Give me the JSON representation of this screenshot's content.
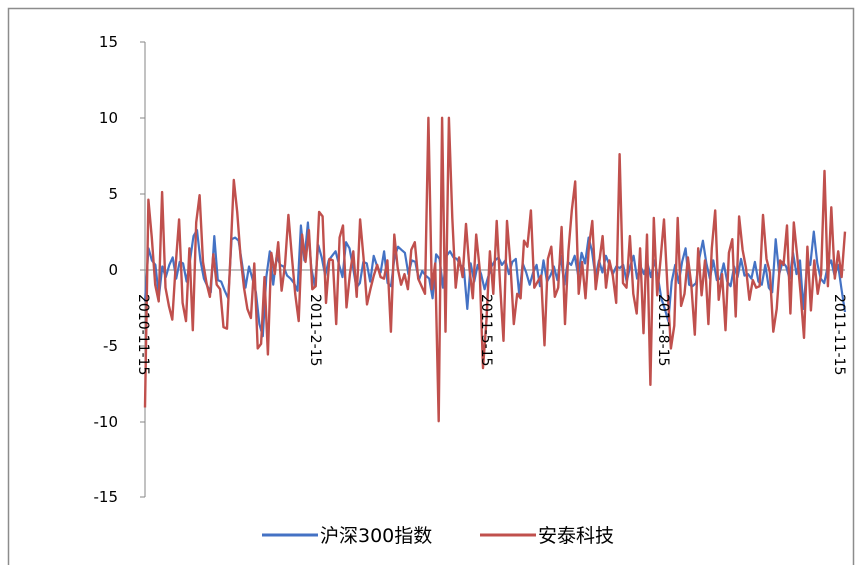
{
  "chart_data": {
    "type": "line",
    "title": "",
    "xlabel": "",
    "ylabel": "",
    "ylim": [
      -15,
      15
    ],
    "y_ticks": [
      "15",
      "10",
      "5",
      "0",
      "-5",
      "-10",
      "-15"
    ],
    "x_tick_labels": [
      "2010-11-15",
      "2011-2-15",
      "2011-5-15",
      "2011-8-15",
      "2011-11-15"
    ],
    "x_range": [
      "2010-11-15",
      "2011-11-15"
    ],
    "grid": false,
    "legend_position": "bottom",
    "series": [
      {
        "name": "沪深300指数",
        "color": "#4472C4",
        "values": [
          -2.1,
          1.4,
          0.6,
          0.3,
          -1.8,
          0.2,
          -0.5,
          0.3,
          0.8,
          -0.6,
          0.5,
          0.4,
          -0.8,
          0.6,
          2.2,
          2.6,
          0.6,
          -0.6,
          -1.1,
          -1.5,
          2.2,
          -0.7,
          -0.8,
          -1.4,
          -1.9,
          2.0,
          2.1,
          1.9,
          0.4,
          -1.2,
          0.2,
          -0.6,
          -1.5,
          -3.6,
          -4.4,
          -0.5,
          1.2,
          -1.0,
          0.9,
          0.3,
          0.2,
          -0.4,
          -0.6,
          -0.9,
          -1.4,
          2.9,
          0.6,
          3.1,
          0.1,
          -1.1,
          1.6,
          0.8,
          -0.4,
          0.6,
          0.9,
          1.2,
          0.3,
          -0.5,
          1.8,
          1.4,
          0.2,
          -1.2,
          -0.9,
          0.5,
          0.4,
          -0.8,
          0.9,
          0.2,
          -0.2,
          1.2,
          -0.9,
          -1.1,
          0.8,
          1.5,
          1.3,
          1.1,
          -0.3,
          0.6,
          0.5,
          -0.7,
          -0.1,
          -0.4,
          -0.6,
          -1.9,
          1.0,
          0.7,
          -1.2,
          0.9,
          1.2,
          0.8,
          0.7,
          0.3,
          0.1,
          -2.6,
          0.4,
          -0.8,
          0.3,
          -0.3,
          -1.3,
          -0.5,
          0.2,
          0.6,
          0.8,
          0.3,
          0.6,
          -0.3,
          0.5,
          0.7,
          -1.7,
          0.4,
          -0.2,
          -1.0,
          -0.2,
          0.3,
          -1.1,
          0.6,
          -0.8,
          -0.4,
          0.2,
          -0.7,
          0.9,
          -1.0,
          0.5,
          0.3,
          0.9,
          -0.4,
          1.1,
          0.4,
          2.1,
          1.2,
          -0.5,
          0.6,
          -0.2,
          0.9,
          0.3,
          -0.3,
          0.2,
          0.1,
          0.3,
          -0.8,
          0.2,
          0.9,
          -0.6,
          0.2,
          -0.3,
          0.4,
          -0.5,
          0.6,
          -0.5,
          -1.9,
          -2.6,
          -3.4,
          -0.8,
          0.3,
          -0.9,
          0.5,
          1.4,
          -1.0,
          -1.1,
          -0.9,
          0.8,
          1.9,
          0.4,
          -0.6,
          0.6,
          -0.7,
          -0.6,
          0.4,
          -0.8,
          -1.1,
          0.2,
          -0.5,
          0.7,
          -0.4,
          -0.3,
          -0.6,
          0.5,
          -0.8,
          -1.0,
          0.3,
          -1.2,
          -1.5,
          2.0,
          -0.3,
          0.5,
          0.2,
          -0.6,
          1.1,
          -0.3,
          0.6,
          -2.6,
          0.2,
          0.3,
          2.5,
          0.4,
          -0.6,
          -0.9,
          0.2,
          0.6,
          -0.4,
          0.3,
          -1.3,
          -2.8
        ]
      },
      {
        "name": "安泰科技",
        "color": "#C0504D",
        "values": [
          -9.1,
          4.6,
          2.1,
          -1.0,
          -2.1,
          5.1,
          -1.2,
          -2.4,
          -3.3,
          0.3,
          3.3,
          -2.2,
          -3.4,
          1.4,
          -4.0,
          3.1,
          4.9,
          0.5,
          -0.9,
          -1.8,
          1.0,
          -1.0,
          -1.3,
          -3.8,
          -3.9,
          0.8,
          5.9,
          3.8,
          0.8,
          -1.2,
          -2.6,
          -3.2,
          0.4,
          -5.2,
          -4.9,
          -0.5,
          -5.6,
          1.1,
          -0.3,
          1.8,
          -1.4,
          0.3,
          3.6,
          0.9,
          -1.6,
          -3.4,
          2.3,
          0.5,
          2.6,
          -1.3,
          -1.1,
          3.8,
          3.5,
          -2.2,
          0.7,
          0.6,
          -3.6,
          2.1,
          2.9,
          -2.5,
          -0.3,
          1.2,
          -1.8,
          3.3,
          0.8,
          -2.3,
          -1.3,
          -0.4,
          0.3,
          -0.5,
          -0.6,
          0.6,
          -4.1,
          2.3,
          0.1,
          -1.0,
          -0.3,
          -1.3,
          1.3,
          1.8,
          -0.6,
          -1.1,
          -1.6,
          10.0,
          -1.3,
          0.4,
          -10.0,
          10.0,
          -4.1,
          10.0,
          3.4,
          -1.2,
          0.8,
          -0.5,
          3.0,
          0.1,
          -1.9,
          2.3,
          0.1,
          -6.5,
          -3.3,
          1.2,
          -1.6,
          3.2,
          -1.0,
          -4.7,
          3.2,
          0.4,
          -3.6,
          -1.6,
          -1.9,
          1.9,
          1.5,
          3.9,
          -1.2,
          -0.8,
          -0.4,
          -5.0,
          0.7,
          1.5,
          -1.8,
          -1.2,
          2.8,
          -3.6,
          1.2,
          3.9,
          5.8,
          -1.6,
          0.5,
          -1.9,
          1.5,
          3.2,
          -1.3,
          0.4,
          2.2,
          -1.2,
          0.6,
          -0.4,
          -2.2,
          7.6,
          -0.9,
          -1.2,
          2.2,
          -1.6,
          -2.9,
          1.4,
          -4.2,
          2.3,
          -7.6,
          3.4,
          -1.7,
          0.7,
          3.3,
          -1.1,
          -5.2,
          -3.7,
          3.4,
          -2.4,
          -1.6,
          0.8,
          -1.0,
          -4.3,
          1.4,
          -1.7,
          0.6,
          -3.6,
          1.4,
          3.9,
          -2.0,
          -0.3,
          -4.0,
          1.1,
          2.0,
          -3.1,
          3.5,
          1.3,
          0.1,
          -2.0,
          -0.7,
          -1.2,
          -1.1,
          3.6,
          0.7,
          -0.2,
          -4.1,
          -2.6,
          0.6,
          0.3,
          2.9,
          -2.9,
          3.1,
          0.9,
          -1.6,
          -4.5,
          1.5,
          -2.7,
          0.6,
          -1.6,
          -0.3,
          6.5,
          -1.1,
          4.1,
          -0.6,
          1.2,
          -0.5,
          2.5
        ]
      }
    ]
  }
}
